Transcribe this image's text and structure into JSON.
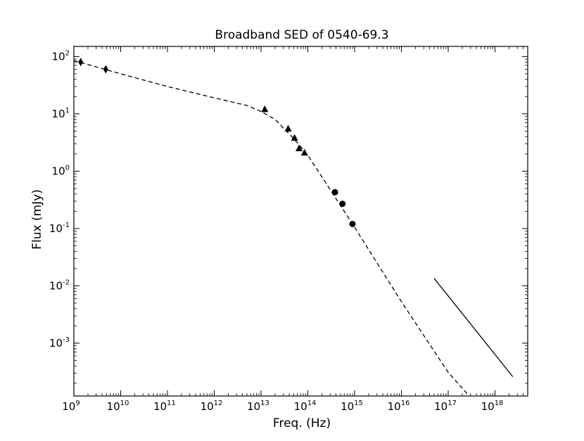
{
  "chart_data": {
    "type": "scatter",
    "title": "Broadband SED of 0540-69.3",
    "xlabel": "Freq. (Hz)",
    "ylabel": "Flux (mJy)",
    "xscale": "log",
    "yscale": "log",
    "xlim": [
      1000000000.0,
      5e+18
    ],
    "ylim": [
      0.00012,
      150
    ],
    "x_ticks": [
      {
        "base": "10",
        "exp": "9",
        "value": 1000000000.0
      },
      {
        "base": "10",
        "exp": "10",
        "value": 10000000000.0
      },
      {
        "base": "10",
        "exp": "11",
        "value": 100000000000.0
      },
      {
        "base": "10",
        "exp": "12",
        "value": 1000000000000.0
      },
      {
        "base": "10",
        "exp": "13",
        "value": 10000000000000.0
      },
      {
        "base": "10",
        "exp": "14",
        "value": 100000000000000.0
      },
      {
        "base": "10",
        "exp": "15",
        "value": 1000000000000000.0
      },
      {
        "base": "10",
        "exp": "16",
        "value": 1e+16
      },
      {
        "base": "10",
        "exp": "17",
        "value": 1e+17
      },
      {
        "base": "10",
        "exp": "18",
        "value": 1e+18
      }
    ],
    "y_ticks": [
      {
        "base": "10",
        "exp": "2",
        "value": 100
      },
      {
        "base": "10",
        "exp": "1",
        "value": 10
      },
      {
        "base": "10",
        "exp": "0",
        "value": 1
      },
      {
        "base": "10",
        "exp": "-1",
        "value": 0.1
      },
      {
        "base": "10",
        "exp": "-2",
        "value": 0.01
      },
      {
        "base": "10",
        "exp": "-3",
        "value": 0.001
      }
    ],
    "grid": false,
    "series": [
      {
        "style": "diamond-markers",
        "color": "#000000",
        "points": [
          [
            1400000000.0,
            80
          ],
          [
            4800000000.0,
            60
          ]
        ]
      },
      {
        "style": "triangle-markers",
        "color": "#000000",
        "points": [
          [
            12000000000000.0,
            12
          ],
          [
            38000000000000.0,
            5.5
          ],
          [
            52000000000000.0,
            3.8
          ],
          [
            65000000000000.0,
            2.5
          ],
          [
            85000000000000.0,
            2.1
          ]
        ]
      },
      {
        "style": "circle-markers",
        "color": "#000000",
        "points": [
          [
            380000000000000.0,
            0.43
          ],
          [
            550000000000000.0,
            0.27
          ],
          [
            900000000000000.0,
            0.12
          ]
        ]
      },
      {
        "style": "dashed-line",
        "color": "#000000",
        "points": [
          [
            1000000000.0,
            85
          ],
          [
            10000000000.0,
            50
          ],
          [
            100000000000.0,
            30
          ],
          [
            1000000000000.0,
            19
          ],
          [
            5000000000000.0,
            14
          ],
          [
            10000000000000.0,
            11
          ],
          [
            20000000000000.0,
            8
          ],
          [
            50000000000000.0,
            3.7
          ],
          [
            100000000000000.0,
            1.9
          ],
          [
            1000000000000000.0,
            0.105
          ],
          [
            1e+16,
            0.0053
          ],
          [
            1e+17,
            0.00031
          ],
          [
            2.8e+17,
            0.00012
          ]
        ]
      },
      {
        "style": "solid-line",
        "color": "#000000",
        "points": [
          [
            5e+16,
            0.0135
          ],
          [
            2.4e+18,
            0.00026
          ]
        ]
      }
    ]
  }
}
